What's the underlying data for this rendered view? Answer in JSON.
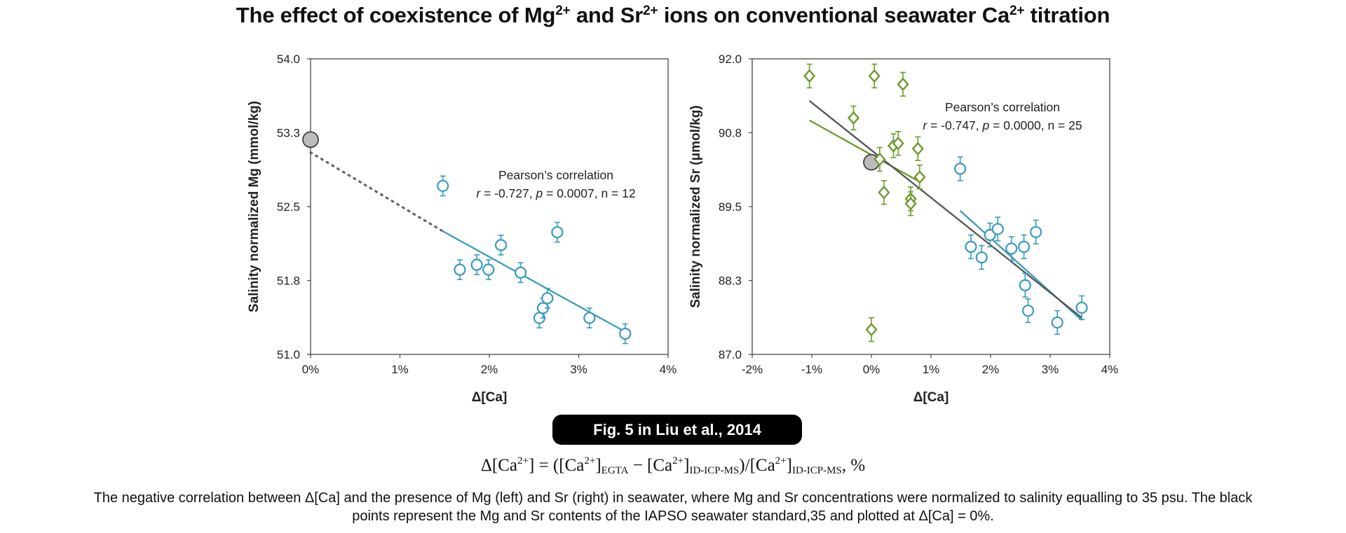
{
  "title": {
    "text": "The effect of coexistence of Mg",
    "sup1": "2+",
    "mid1": " and Sr",
    "sup2": "2+",
    "mid2": " ions on conventional seawater Ca",
    "sup3": "2+",
    "end": " titration"
  },
  "badge": "Fig. 5 in Liu et al., 2014",
  "formula": {
    "a": "Δ[Ca",
    "a_sup": "2+",
    "b": "] = ([Ca",
    "b_sup": "2+",
    "c": "]",
    "c_sub": "EGTA",
    "d": " − [Ca",
    "d_sup": "2+",
    "e": "]",
    "e_sub": "ID-ICP-MS",
    "f": ")/[Ca",
    "f_sup": "2+",
    "g": "]",
    "g_sub": "ID-ICP-MS",
    "h": ", %"
  },
  "caption": "The negative correlation between Δ[Ca] and the presence of Mg (left) and Sr (right) in seawater, where Mg and Sr concentrations were normalized to salinity equalling to 35 psu. The black points represent the Mg and Sr contents of the IAPSO seawater standard,35 and plotted at Δ[Ca] = 0%.",
  "colors": {
    "blue": "#3a9bbd",
    "green": "#6e9a2f",
    "reference": "#bbbbbb",
    "dark_line": "#555555"
  },
  "chart_data": [
    {
      "type": "scatter",
      "xlabel": "Δ[Ca]",
      "ylabel": "Salinity normalized Mg (mmol/kg)",
      "xlim": [
        0,
        4
      ],
      "ylim": [
        51.0,
        54.0
      ],
      "xticks": [
        "0%",
        "1%",
        "2%",
        "3%",
        "4%"
      ],
      "yticks": [
        "51.0",
        "51.8",
        "52.5",
        "53.3",
        "54.0"
      ],
      "annotation": {
        "line1": "Pearson’s correlation",
        "r_label": "r",
        "r_text": " = -0.727, ",
        "p_label": "p",
        "p_text": " = 0.0007, n = 12"
      },
      "series": [
        {
          "marker": "circle",
          "color": "#3a9bbd",
          "points": [
            {
              "x": 1.48,
              "y": 52.71
            },
            {
              "x": 1.67,
              "y": 51.86
            },
            {
              "x": 1.86,
              "y": 51.91
            },
            {
              "x": 1.99,
              "y": 51.86
            },
            {
              "x": 2.13,
              "y": 52.11
            },
            {
              "x": 2.35,
              "y": 51.83
            },
            {
              "x": 2.56,
              "y": 51.37
            },
            {
              "x": 2.6,
              "y": 51.47
            },
            {
              "x": 2.65,
              "y": 51.57
            },
            {
              "x": 2.76,
              "y": 52.24
            },
            {
              "x": 3.12,
              "y": 51.37
            },
            {
              "x": 3.52,
              "y": 51.21
            }
          ],
          "error": 0.1
        }
      ],
      "reference_point": {
        "x": 0.0,
        "y": 53.18
      },
      "fit": {
        "from": [
          1.48,
          52.25
        ],
        "to": [
          3.52,
          51.23
        ]
      },
      "extrapolation": {
        "from": [
          0.0,
          53.05
        ],
        "to": [
          1.48,
          52.25
        ]
      }
    },
    {
      "type": "scatter",
      "xlabel": "Δ[Ca]",
      "ylabel": "Salinity normalized Sr (μmol/kg)",
      "xlim": [
        -2,
        4
      ],
      "ylim": [
        87.0,
        92.0
      ],
      "xticks": [
        "-2%",
        "-1%",
        "0%",
        "1%",
        "2%",
        "3%",
        "4%"
      ],
      "yticks": [
        "87.0",
        "88.3",
        "89.5",
        "90.8",
        "92.0"
      ],
      "annotation": {
        "line1": "Pearson’s correlation",
        "r_label": "r",
        "r_text": " = -0.747, ",
        "p_label": "p",
        "p_text": " = 0.0000, n = 25"
      },
      "series": [
        {
          "marker": "diamond",
          "color": "#6e9a2f",
          "points": [
            {
              "x": -1.04,
              "y": 91.71
            },
            {
              "x": 0.05,
              "y": 91.71
            },
            {
              "x": 0.53,
              "y": 91.57
            },
            {
              "x": -0.3,
              "y": 91.0
            },
            {
              "x": 0.37,
              "y": 90.53
            },
            {
              "x": 0.45,
              "y": 90.57
            },
            {
              "x": 0.78,
              "y": 90.48
            },
            {
              "x": 0.14,
              "y": 90.3
            },
            {
              "x": 0.81,
              "y": 90.0
            },
            {
              "x": 0.21,
              "y": 89.74
            },
            {
              "x": 0.66,
              "y": 89.63
            },
            {
              "x": 0.66,
              "y": 89.55
            },
            {
              "x": 0.0,
              "y": 87.42
            }
          ],
          "error": 0.2
        },
        {
          "marker": "circle",
          "color": "#3a9bbd",
          "points": [
            {
              "x": 1.49,
              "y": 90.14
            },
            {
              "x": 1.67,
              "y": 88.82
            },
            {
              "x": 1.85,
              "y": 88.64
            },
            {
              "x": 1.99,
              "y": 89.02
            },
            {
              "x": 2.12,
              "y": 89.12
            },
            {
              "x": 2.35,
              "y": 88.79
            },
            {
              "x": 2.56,
              "y": 88.82
            },
            {
              "x": 2.58,
              "y": 88.17
            },
            {
              "x": 2.63,
              "y": 87.74
            },
            {
              "x": 2.76,
              "y": 89.07
            },
            {
              "x": 3.12,
              "y": 87.54
            },
            {
              "x": 3.53,
              "y": 87.79
            }
          ],
          "error": 0.2
        }
      ],
      "reference_point": {
        "x": 0.0,
        "y": 90.25
      },
      "fits": [
        {
          "color": "#6e9a2f",
          "from": [
            -1.04,
            90.96
          ],
          "to": [
            0.81,
            89.92
          ]
        },
        {
          "color": "#3a9bbd",
          "from": [
            1.49,
            89.43
          ],
          "to": [
            3.53,
            87.58
          ]
        },
        {
          "color": "#555555",
          "from": [
            -1.04,
            91.29
          ],
          "to": [
            3.53,
            87.62
          ]
        }
      ]
    }
  ]
}
